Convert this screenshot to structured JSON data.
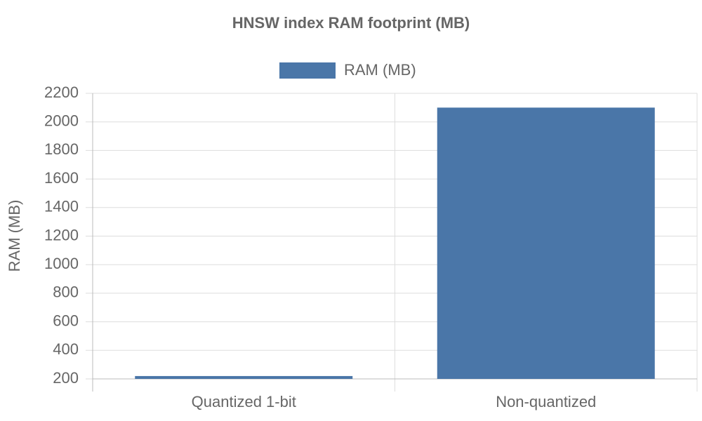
{
  "chart_data": {
    "type": "bar",
    "title": "HNSW index RAM footprint (MB)",
    "y_label": "RAM (MB)",
    "categories": [
      "Quantized 1-bit",
      "Non-quantized"
    ],
    "series": [
      {
        "name": "RAM (MB)",
        "color": "#4a76a8",
        "values": [
          220,
          2100
        ]
      }
    ],
    "ylim": [
      200,
      2200
    ],
    "yticks": [
      200,
      400,
      600,
      800,
      1000,
      1200,
      1400,
      1600,
      1800,
      2000,
      2200
    ],
    "grid": true,
    "legend": "top"
  }
}
